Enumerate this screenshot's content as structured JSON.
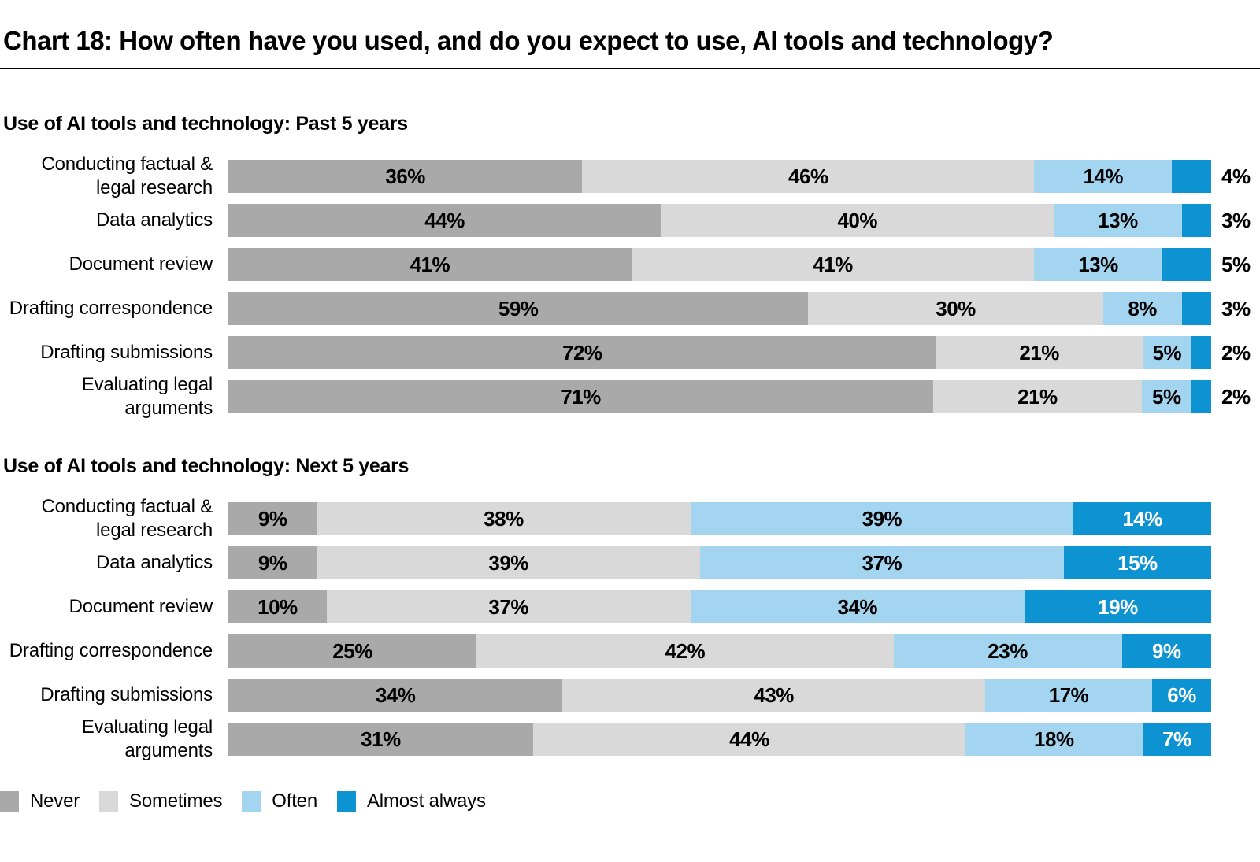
{
  "page": {
    "title": "Chart 18: How often have you used, and do you expect to use, AI tools and technology?"
  },
  "colors": {
    "never": "#a9a9a9",
    "sometimes": "#d9d9d9",
    "often": "#a3d4f0",
    "almost_always": "#0d93d2",
    "text": "#000000",
    "rule": "#000000",
    "inside_label_on_dark": "#ffffff"
  },
  "legend": {
    "position": "bottom-left",
    "items": [
      {
        "key": "never",
        "label": "Never",
        "color": "#a9a9a9"
      },
      {
        "key": "sometimes",
        "label": "Sometimes",
        "color": "#d9d9d9"
      },
      {
        "key": "often",
        "label": "Often",
        "color": "#a3d4f0"
      },
      {
        "key": "almost_always",
        "label": "Almost always",
        "color": "#0d93d2"
      }
    ]
  },
  "chart_data": [
    {
      "id": "past",
      "type": "bar",
      "variant": "stacked-horizontal",
      "title": "Use of AI tools and technology: Past 5 years",
      "unit": "%",
      "xlim": [
        0,
        100
      ],
      "grid": false,
      "axes_visible": false,
      "last_series_label_outside": true,
      "categories": [
        "Conducting factual &\nlegal research",
        "Data analytics",
        "Document review",
        "Drafting correspondence",
        "Drafting submissions",
        "Evaluating legal\narguments"
      ],
      "series": [
        {
          "name": "Never",
          "color": "#a9a9a9",
          "values": [
            36,
            44,
            41,
            59,
            72,
            71
          ]
        },
        {
          "name": "Sometimes",
          "color": "#d9d9d9",
          "values": [
            46,
            40,
            41,
            30,
            21,
            21
          ]
        },
        {
          "name": "Often",
          "color": "#a3d4f0",
          "values": [
            14,
            13,
            13,
            8,
            5,
            5
          ]
        },
        {
          "name": "Almost always",
          "color": "#0d93d2",
          "values": [
            4,
            3,
            5,
            3,
            2,
            2
          ]
        }
      ]
    },
    {
      "id": "next",
      "type": "bar",
      "variant": "stacked-horizontal",
      "title": "Use of AI tools and technology: Next 5 years",
      "unit": "%",
      "xlim": [
        0,
        100
      ],
      "grid": false,
      "axes_visible": false,
      "last_series_label_outside": false,
      "categories": [
        "Conducting factual &\nlegal research",
        "Data analytics",
        "Document review",
        "Drafting correspondence",
        "Drafting submissions",
        "Evaluating legal\narguments"
      ],
      "series": [
        {
          "name": "Never",
          "color": "#a9a9a9",
          "values": [
            9,
            9,
            10,
            25,
            34,
            31
          ]
        },
        {
          "name": "Sometimes",
          "color": "#d9d9d9",
          "values": [
            38,
            39,
            37,
            42,
            43,
            44
          ]
        },
        {
          "name": "Often",
          "color": "#a3d4f0",
          "values": [
            39,
            37,
            34,
            23,
            17,
            18
          ]
        },
        {
          "name": "Almost always",
          "color": "#0d93d2",
          "values": [
            14,
            15,
            19,
            9,
            6,
            7
          ]
        }
      ]
    }
  ]
}
